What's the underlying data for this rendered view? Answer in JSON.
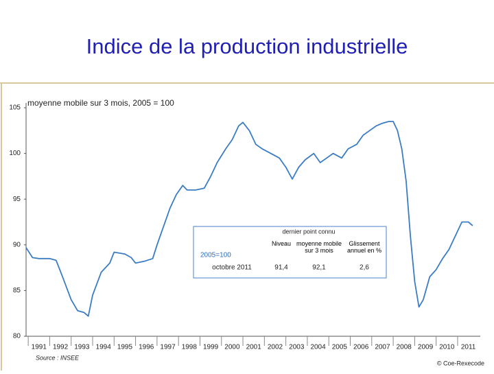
{
  "title": "Indice de la production industrielle",
  "chart_data": {
    "type": "line",
    "subtitle": "moyenne mobile sur 3 mois, 2005 = 100",
    "source": "Source : INSEE",
    "credit": "© Coe-Rexecode",
    "x": [
      1990.9,
      1991.2,
      1991.5,
      1992.0,
      1992.3,
      1992.6,
      1993.0,
      1993.3,
      1993.6,
      1993.8,
      1994.0,
      1994.4,
      1994.8,
      1995.0,
      1995.5,
      1995.8,
      1996.0,
      1996.4,
      1996.8,
      1997.0,
      1997.3,
      1997.6,
      1997.9,
      1998.2,
      1998.4,
      1998.8,
      1999.2,
      1999.5,
      1999.8,
      2000.2,
      2000.5,
      2000.8,
      2001.0,
      2001.3,
      2001.6,
      2001.9,
      2002.3,
      2002.7,
      2003.0,
      2003.3,
      2003.6,
      2003.9,
      2004.3,
      2004.6,
      2004.9,
      2005.2,
      2005.6,
      2005.9,
      2006.3,
      2006.6,
      2006.9,
      2007.2,
      2007.5,
      2007.8,
      2008.0,
      2008.2,
      2008.4,
      2008.6,
      2008.8,
      2009.0,
      2009.2,
      2009.4,
      2009.7,
      2010.0,
      2010.3,
      2010.6,
      2010.9,
      2011.2,
      2011.5,
      2011.7
    ],
    "values": [
      89.7,
      88.6,
      88.5,
      88.5,
      88.3,
      86.5,
      84.0,
      82.8,
      82.6,
      82.2,
      84.5,
      87.0,
      88.0,
      89.2,
      89.0,
      88.6,
      88.0,
      88.2,
      88.5,
      90.0,
      92.0,
      94.0,
      95.5,
      96.5,
      96.0,
      96.0,
      96.2,
      97.5,
      99.0,
      100.5,
      101.5,
      103.0,
      103.4,
      102.5,
      101.0,
      100.5,
      100.0,
      99.5,
      98.5,
      97.2,
      98.5,
      99.3,
      100.0,
      99.0,
      99.5,
      100.0,
      99.5,
      100.5,
      101.0,
      102.0,
      102.5,
      103.0,
      103.3,
      103.5,
      103.5,
      102.5,
      100.5,
      97.0,
      91.0,
      86.0,
      83.2,
      84.0,
      86.5,
      87.3,
      88.5,
      89.5,
      91.0,
      92.5,
      92.5,
      92.1
    ],
    "color": "#3a7cc4",
    "xlim": [
      1990.9,
      2011.8
    ],
    "xticks": [
      1991,
      1992,
      1993,
      1994,
      1995,
      1996,
      1997,
      1998,
      1999,
      2000,
      2001,
      2002,
      2003,
      2004,
      2005,
      2006,
      2007,
      2008,
      2009,
      2010,
      2011
    ],
    "ylim": [
      80,
      105
    ],
    "yticks": [
      80,
      85,
      90,
      95,
      100,
      105
    ],
    "grid": false,
    "inset": {
      "heading": "dernier point connu",
      "base": "2005=100",
      "columns": [
        "Niveau",
        "moyenne mobile sur 3 mois",
        "Glissement annuel en %"
      ],
      "row": [
        "octobre 2011",
        "91,4",
        "92,1",
        "2,6"
      ]
    }
  }
}
